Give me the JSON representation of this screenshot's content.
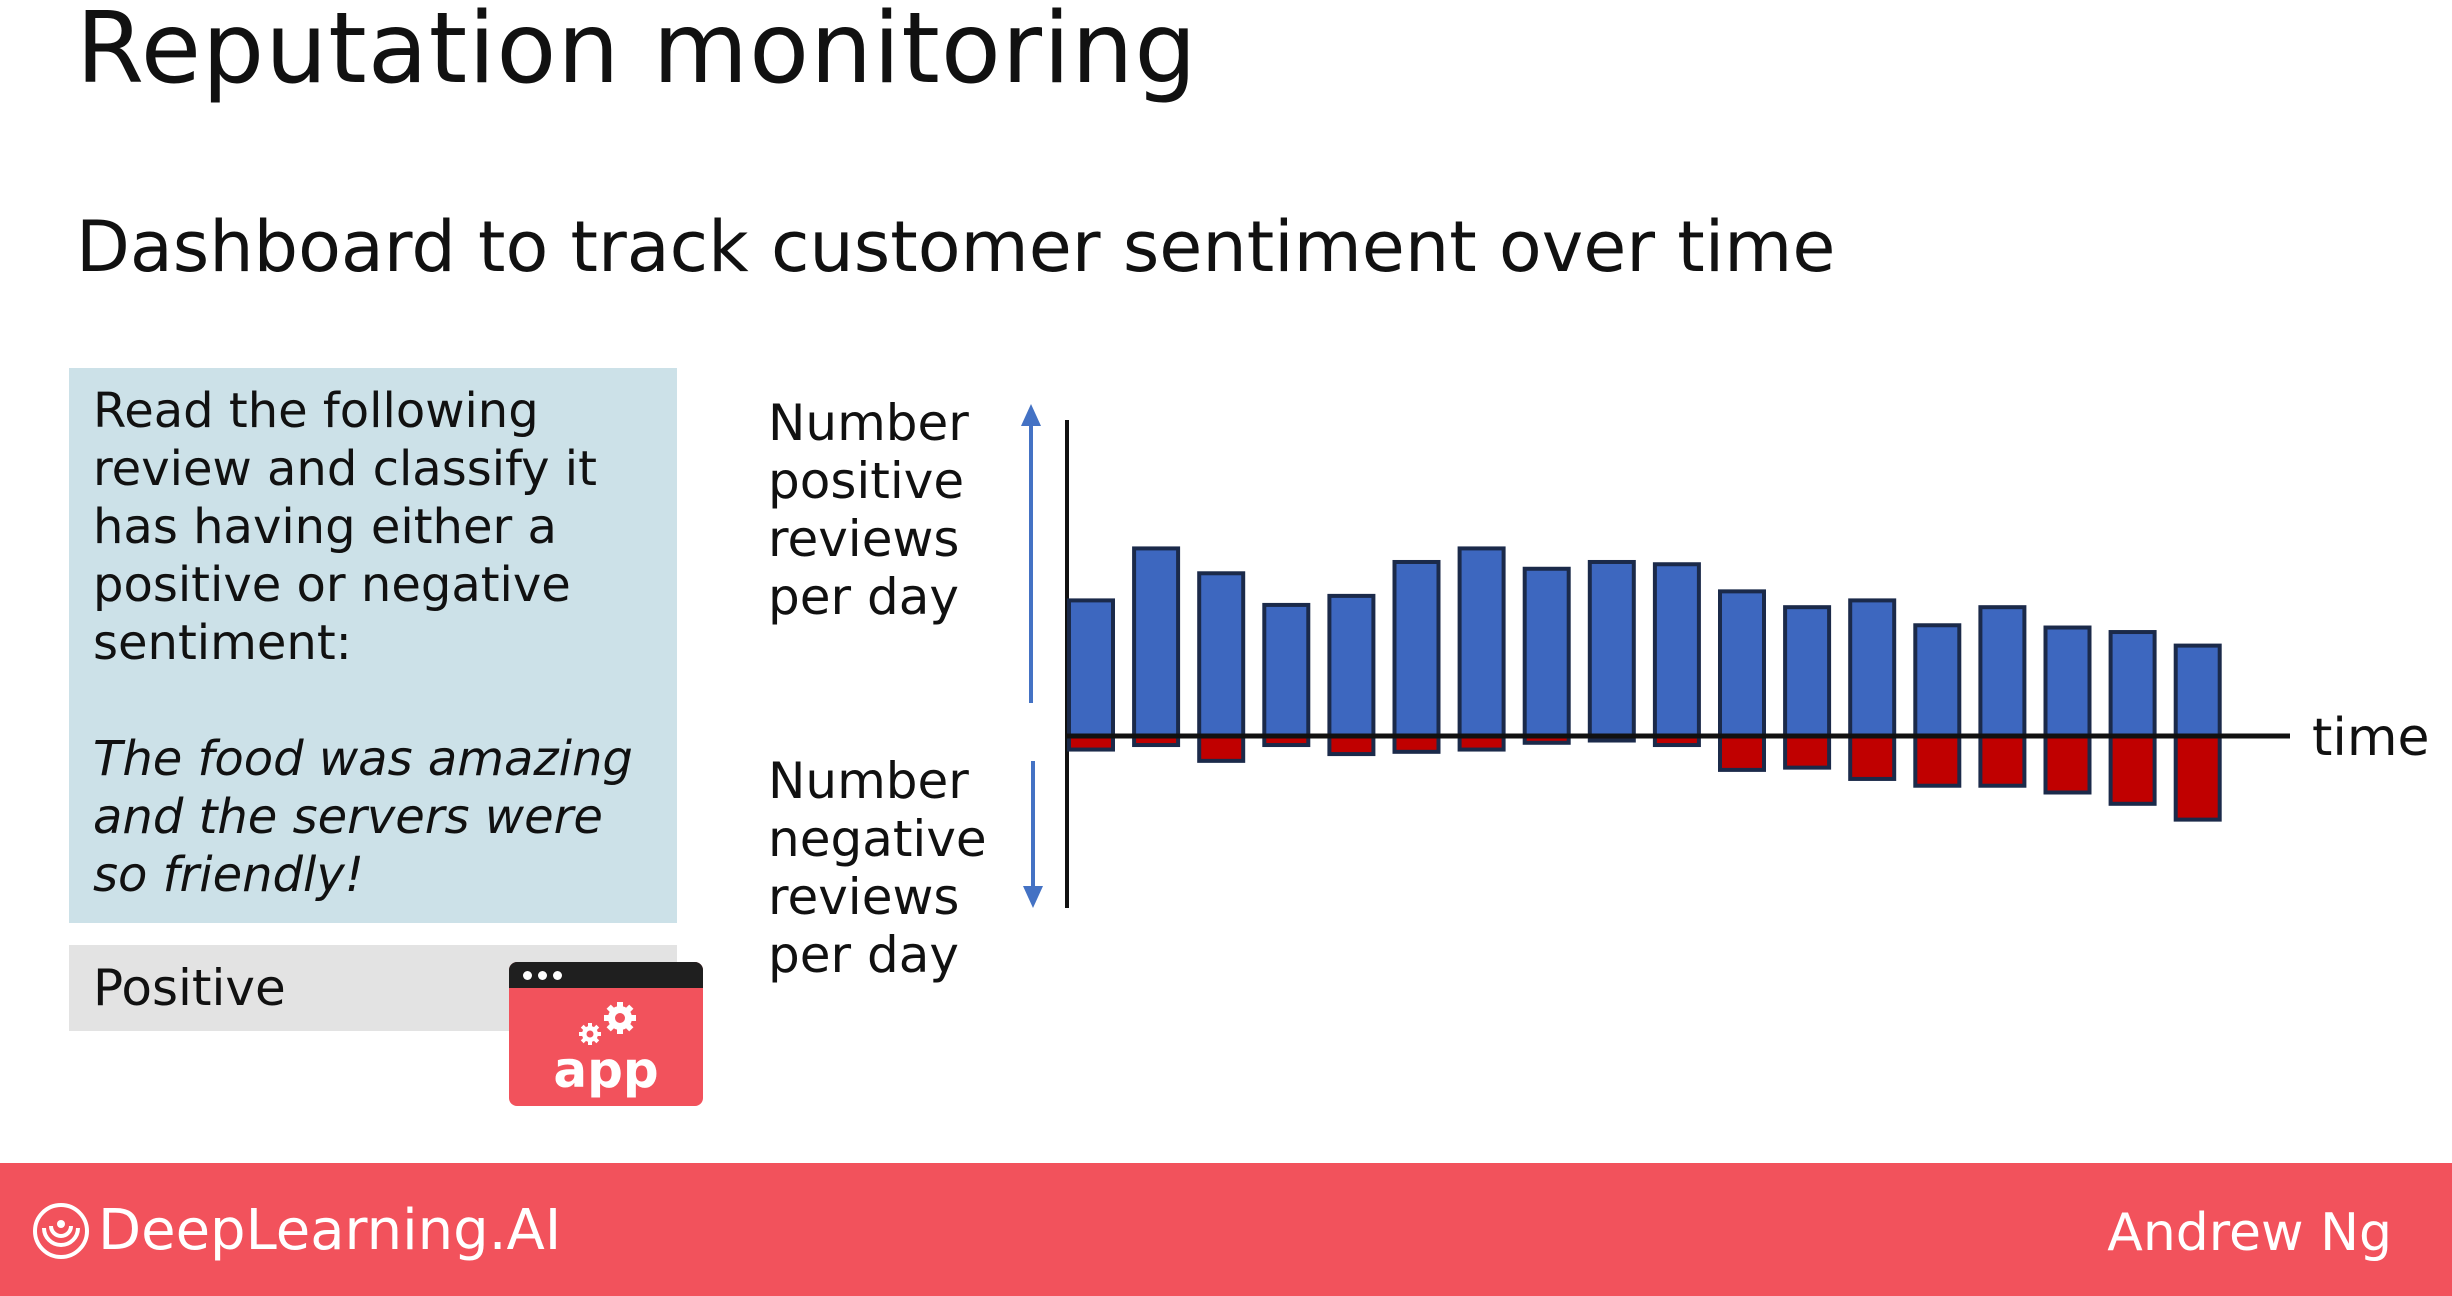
{
  "slide": {
    "title": "Reputation monitoring",
    "subtitle": "Dashboard to track customer sentiment over time"
  },
  "prompt": {
    "instruction": "Read the following review and classify it has having either a positive or negative sentiment:",
    "review": "The food was amazing and the servers were so friendly!",
    "output": "Positive"
  },
  "app_icon": {
    "label": "app",
    "icon": "gears-icon",
    "color": "#f2525c"
  },
  "chart_data": {
    "type": "bar",
    "positive_label": "Number positive reviews per day",
    "negative_label": "Number negative reviews per day",
    "xlabel": "time",
    "positive_values": [
      60,
      83,
      72,
      58,
      62,
      77,
      83,
      74,
      77,
      76,
      64,
      57,
      60,
      49,
      57,
      48,
      46,
      40
    ],
    "negative_values": [
      6,
      4,
      11,
      4,
      8,
      7,
      6,
      3,
      2,
      4,
      15,
      14,
      19,
      22,
      22,
      25,
      30,
      37
    ],
    "positive_color": "#3d67bf",
    "negative_color": "#c00000",
    "outline_color": "#1b2a4a",
    "arrow_color": "#4472c4"
  },
  "footer": {
    "brand": "DeepLearning.AI",
    "author": "Andrew Ng",
    "color": "#f2525c"
  }
}
